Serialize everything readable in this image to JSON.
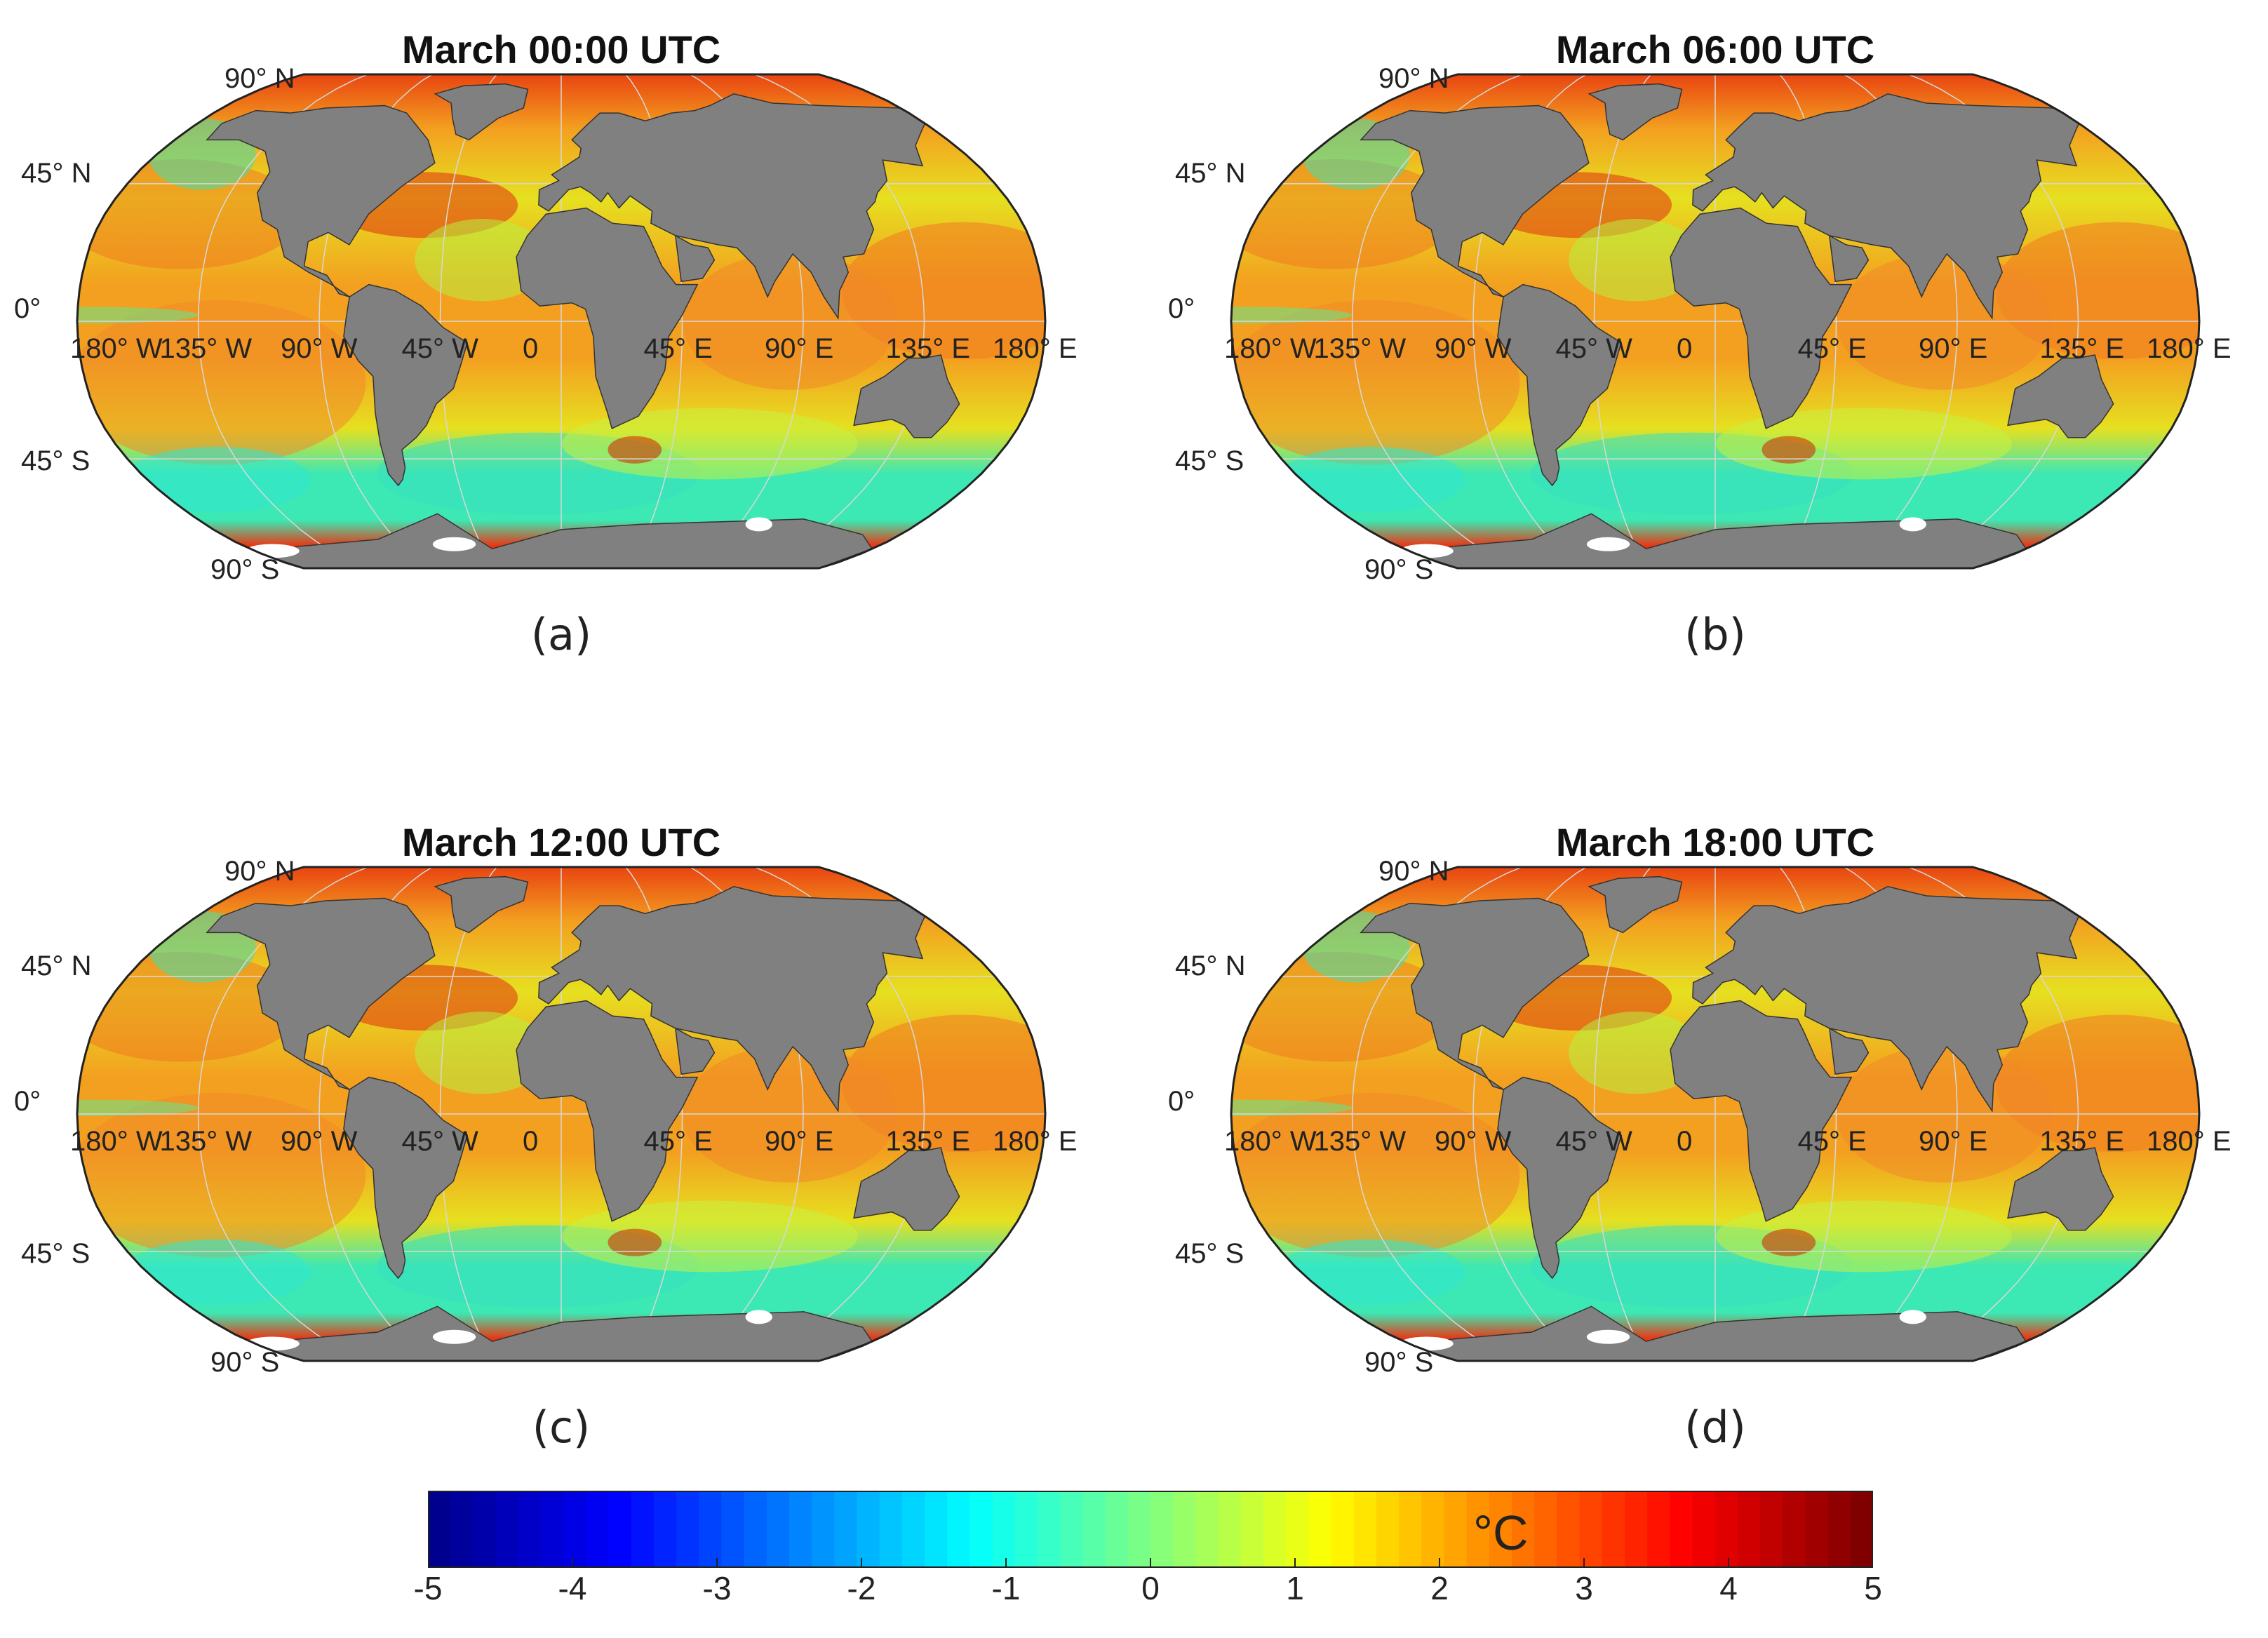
{
  "panels": [
    {
      "title": "March 00:00 UTC",
      "letter": "(a)"
    },
    {
      "title": "March 06:00 UTC",
      "letter": "(b)"
    },
    {
      "title": "March 12:00 UTC",
      "letter": "(c)"
    },
    {
      "title": "March 18:00 UTC",
      "letter": "(d)"
    }
  ],
  "latitude_labels": [
    "90° N",
    "45° N",
    "0°",
    "45° S",
    "90° S"
  ],
  "longitude_labels": [
    "180° W",
    "135° W",
    "90° W",
    "45° W",
    "0",
    "45° E",
    "90° E",
    "135° E",
    "180° E"
  ],
  "colorbar": {
    "min": -5,
    "max": 5,
    "ticks": [
      "-5",
      "-4",
      "-3",
      "-2",
      "-1",
      "0",
      "1",
      "2",
      "3",
      "4",
      "5"
    ],
    "unit": "°C",
    "colormap": [
      "#00008f",
      "#0000ff",
      "#0080ff",
      "#00ffff",
      "#80ff80",
      "#ffff00",
      "#ff8000",
      "#ff0000",
      "#800000"
    ]
  },
  "colors": {
    "land": "#808080",
    "ocean_warm": "#f3a020",
    "ocean_mid": "#e6e020",
    "ocean_cool": "#3ce8b4",
    "polar": "#a00000",
    "ice": "#ffffff"
  }
}
